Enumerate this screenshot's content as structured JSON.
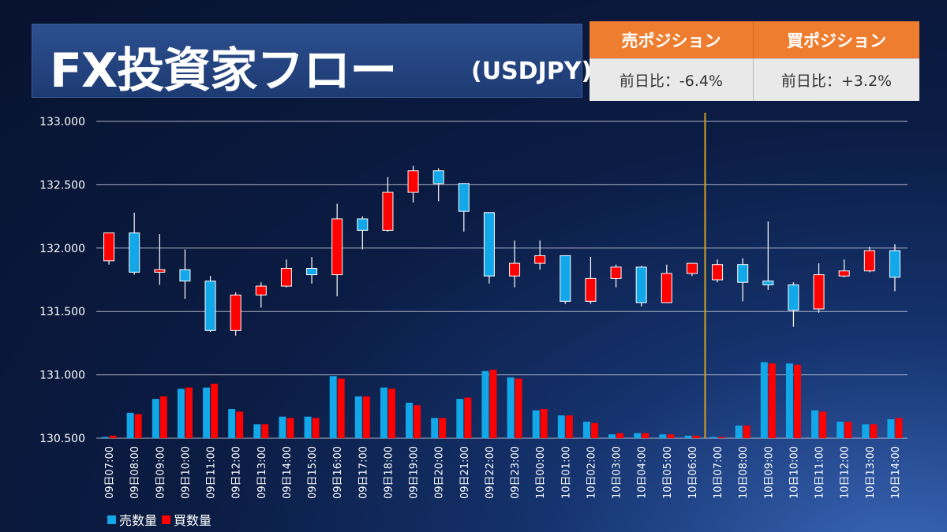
{
  "header": {
    "title": "FX投資家フロー",
    "subtitle": "(USDJPY)"
  },
  "positions": {
    "sell": {
      "label": "売ポジション",
      "change": "前日比：-6.4%"
    },
    "buy": {
      "label": "買ポジション",
      "change": "前日比：+3.2%"
    }
  },
  "colors": {
    "up": "#ff0000",
    "down": "#12a7e8",
    "sell_volume": "#12a7e8",
    "buy_volume": "#ff0000",
    "marker_line": "#d6a21c",
    "header_accent": "#ef7d2f"
  },
  "chart_data": {
    "type": "candlestick+bar",
    "ylim": [
      130.5,
      133.0
    ],
    "yticks": [
      "133.000",
      "132.500",
      "132.000",
      "131.500",
      "131.000",
      "130.500"
    ],
    "categories": [
      "09日07:00",
      "09日08:00",
      "09日09:00",
      "09日10:00",
      "09日11:00",
      "09日12:00",
      "09日13:00",
      "09日14:00",
      "09日15:00",
      "09日16:00",
      "09日17:00",
      "09日18:00",
      "09日19:00",
      "09日20:00",
      "09日21:00",
      "09日22:00",
      "09日23:00",
      "10日00:00",
      "10日01:00",
      "10日02:00",
      "10日03:00",
      "10日04:00",
      "10日05:00",
      "10日06:00",
      "10日07:00",
      "10日08:00",
      "10日09:00",
      "10日10:00",
      "10日11:00",
      "10日12:00",
      "10日13:00",
      "10日14:00"
    ],
    "ohlc": [
      [
        131.9,
        132.12,
        131.87,
        132.12
      ],
      [
        132.12,
        132.28,
        131.79,
        131.81
      ],
      [
        131.81,
        132.11,
        131.71,
        131.83
      ],
      [
        131.83,
        131.99,
        131.6,
        131.74
      ],
      [
        131.74,
        131.78,
        131.34,
        131.35
      ],
      [
        131.35,
        131.65,
        131.31,
        131.63
      ],
      [
        131.63,
        131.73,
        131.53,
        131.7
      ],
      [
        131.7,
        131.91,
        131.69,
        131.84
      ],
      [
        131.84,
        131.93,
        131.72,
        131.79
      ],
      [
        131.79,
        132.35,
        131.62,
        132.23
      ],
      [
        132.23,
        132.25,
        131.99,
        132.14
      ],
      [
        132.14,
        132.56,
        132.13,
        132.44
      ],
      [
        132.44,
        132.65,
        132.36,
        132.61
      ],
      [
        132.61,
        132.63,
        132.37,
        132.51
      ],
      [
        132.51,
        132.51,
        132.13,
        132.29
      ],
      [
        132.28,
        132.28,
        131.72,
        131.78
      ],
      [
        131.78,
        132.06,
        131.69,
        131.88
      ],
      [
        131.88,
        132.06,
        131.83,
        131.94
      ],
      [
        131.94,
        131.94,
        131.56,
        131.58
      ],
      [
        131.58,
        131.93,
        131.56,
        131.76
      ],
      [
        131.76,
        131.87,
        131.69,
        131.85
      ],
      [
        131.85,
        131.86,
        131.54,
        131.57
      ],
      [
        131.57,
        131.87,
        131.57,
        131.8
      ],
      [
        131.8,
        131.88,
        131.78,
        131.88
      ],
      [
        131.75,
        131.91,
        131.73,
        131.87
      ],
      [
        131.87,
        131.92,
        131.58,
        131.73
      ],
      [
        131.74,
        132.21,
        131.67,
        131.71
      ],
      [
        131.71,
        131.73,
        131.38,
        131.51
      ],
      [
        131.52,
        131.88,
        131.49,
        131.79
      ],
      [
        131.78,
        131.91,
        131.77,
        131.82
      ],
      [
        131.82,
        132.01,
        131.81,
        131.98
      ],
      [
        131.98,
        132.03,
        131.66,
        131.77
      ]
    ],
    "series": [
      {
        "name": "売数量",
        "values": [
          130.51,
          130.7,
          130.81,
          130.89,
          130.9,
          130.73,
          130.61,
          130.67,
          130.67,
          130.99,
          130.83,
          130.9,
          130.78,
          130.66,
          130.81,
          131.03,
          130.98,
          130.72,
          130.68,
          130.63,
          130.53,
          130.54,
          130.53,
          130.52,
          130.51,
          130.6,
          131.1,
          131.09,
          130.72,
          130.63,
          130.61,
          130.65
        ]
      },
      {
        "name": "買数量",
        "values": [
          130.52,
          130.69,
          130.83,
          130.9,
          130.93,
          130.71,
          130.61,
          130.66,
          130.66,
          130.97,
          130.83,
          130.89,
          130.76,
          130.66,
          130.82,
          131.04,
          130.97,
          130.73,
          130.68,
          130.62,
          130.54,
          130.54,
          130.53,
          130.52,
          130.51,
          130.6,
          131.09,
          131.08,
          130.71,
          130.63,
          130.61,
          130.66
        ]
      }
    ],
    "marker_after_category": "10日06:00",
    "legend_position": "bottom-left",
    "grid": true
  }
}
